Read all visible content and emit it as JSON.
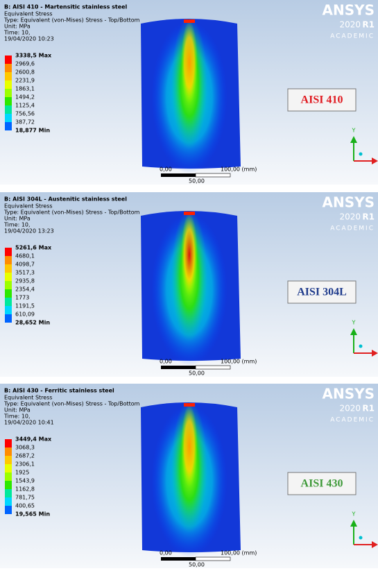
{
  "panels": [
    {
      "title": "B: AISI 410 - Martensitic stainless steel",
      "subtitle": "Equivalent Stress",
      "type_line": "Type: Equivalent (von-Mises) Stress - Top/Bottom",
      "unit": "Unit: MPa",
      "time": "Time: 10,",
      "date": "19/04/2020 10:23",
      "legend": [
        "3338,5 Max",
        "2969,6",
        "2600,8",
        "2231,9",
        "1863,1",
        "1494,2",
        "1125,4",
        "756,56",
        "387,72",
        "18,877 Min"
      ],
      "logo": "ANSYS",
      "version_year": "2020",
      "version_release": "R1",
      "edition": "ACADEMIC",
      "label": "AISI 410",
      "label_color": "#e0191f",
      "scale_start": "0,00",
      "scale_end": "100,00 (mm)",
      "scale_mid": "50,00",
      "axis_label": "Y",
      "peak": "#ff9a00"
    },
    {
      "title": "B: AISI 304L - Austenitic stainless steel",
      "subtitle": "Equivalent Stress",
      "type_line": "Type: Equivalent (von-Mises) Stress - Top/Bottom",
      "unit": "Unit: MPa",
      "time": "Time: 10,",
      "date": "19/04/2020 13:23",
      "legend": [
        "5261,6 Max",
        "4680,1",
        "4098,7",
        "3517,3",
        "2935,8",
        "2354,4",
        "1773",
        "1191,5",
        "610,09",
        "28,652 Min"
      ],
      "logo": "ANSYS",
      "version_year": "2020",
      "version_release": "R1",
      "edition": "ACADEMIC",
      "label": "AISI 304L",
      "label_color": "#1f3b8c",
      "scale_start": "0,00",
      "scale_end": "100,00 (mm)",
      "scale_mid": "50,00",
      "axis_label": "Y",
      "peak": "#d81010"
    },
    {
      "title": "B: AISI 430 - Ferritic stainless steel",
      "subtitle": "Equivalent Stress",
      "type_line": "Type: Equivalent (von-Mises) Stress - Top/Bottom",
      "unit": "Unit: MPa",
      "time": "Time: 10,",
      "date": "19/04/2020 10:41",
      "legend": [
        "3449,4 Max",
        "3068,3",
        "2687,2",
        "2306,1",
        "1925",
        "1543,9",
        "1162,8",
        "781,75",
        "400,65",
        "19,565 Min"
      ],
      "logo": "ANSYS",
      "version_year": "2020",
      "version_release": "R1",
      "edition": "ACADEMIC",
      "label": "AISI 430",
      "label_color": "#3f9a3a",
      "scale_start": "0,00",
      "scale_end": "100,00 (mm)",
      "scale_mid": "50,00",
      "axis_label": "Y",
      "peak": "#ff9a00"
    }
  ],
  "legend_colors": [
    "#ff0000",
    "#ff8c00",
    "#ffc800",
    "#e8ff00",
    "#9cff00",
    "#2de800",
    "#00e89c",
    "#00d7ff",
    "#0064ff"
  ]
}
